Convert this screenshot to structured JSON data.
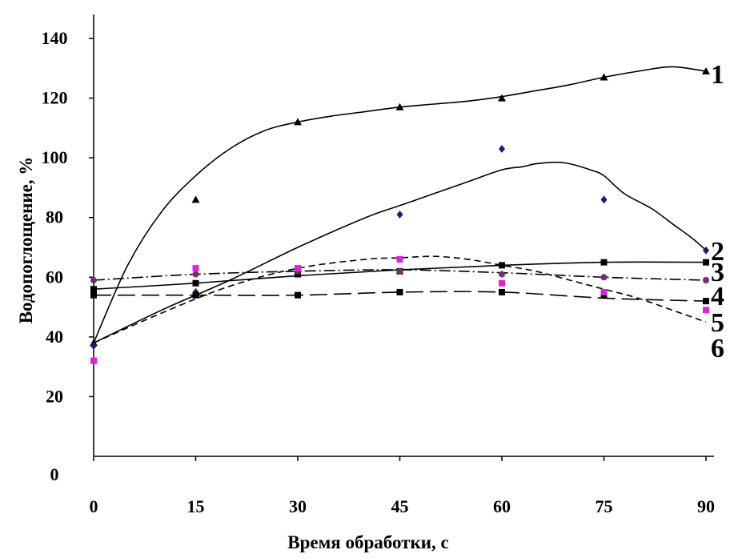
{
  "chart_data": {
    "type": "line",
    "title": "",
    "xlabel": "Время обработки, с",
    "ylabel": "Водопоглощение, %",
    "xlim": [
      0,
      90
    ],
    "ylim": [
      0,
      140
    ],
    "x_ticks": [
      "0",
      "15",
      "30",
      "45",
      "60",
      "75",
      "90"
    ],
    "y_ticks": [
      "0",
      "20",
      "40",
      "60",
      "80",
      "100",
      "120",
      "140"
    ],
    "x": [
      0,
      15,
      30,
      45,
      60,
      75,
      90
    ],
    "grid": false,
    "legend": "curve labels at right end",
    "series": [
      {
        "label": "1",
        "marker": "triangle",
        "dash": "solid",
        "color": "#000000",
        "marker_color": "#000000",
        "points": [
          38,
          86,
          112,
          117,
          120,
          127,
          129
        ],
        "fit": [
          [
            0,
            38
          ],
          [
            5,
            64
          ],
          [
            10,
            82
          ],
          [
            15,
            94
          ],
          [
            20,
            103
          ],
          [
            25,
            109
          ],
          [
            30,
            112
          ],
          [
            35,
            114
          ],
          [
            40,
            115.5
          ],
          [
            45,
            117
          ],
          [
            50,
            118
          ],
          [
            55,
            119
          ],
          [
            60,
            120.5
          ],
          [
            65,
            122.5
          ],
          [
            70,
            124.5
          ],
          [
            75,
            127
          ],
          [
            80,
            129
          ],
          [
            85,
            130.5
          ],
          [
            90,
            129
          ]
        ]
      },
      {
        "label": "2",
        "marker": "diamond",
        "dash": "solid",
        "color": "#000000",
        "marker_color": "#1a1a80",
        "points": [
          37,
          55,
          62,
          81,
          103,
          86,
          69
        ],
        "fit": [
          [
            0,
            38
          ],
          [
            10,
            49
          ],
          [
            20,
            59
          ],
          [
            30,
            70
          ],
          [
            40,
            80
          ],
          [
            45,
            84
          ],
          [
            50,
            88
          ],
          [
            55,
            92
          ],
          [
            60,
            96
          ],
          [
            63,
            97
          ],
          [
            65,
            98
          ],
          [
            68,
            98.5
          ],
          [
            70,
            98
          ],
          [
            73,
            96
          ],
          [
            75,
            94
          ],
          [
            78,
            88
          ],
          [
            82,
            83
          ],
          [
            85,
            78
          ],
          [
            88,
            73
          ],
          [
            90,
            69
          ]
        ]
      },
      {
        "label": "3",
        "marker": "square",
        "dash": "solid",
        "color": "#000000",
        "marker_color": "#000000",
        "points": [
          56,
          58,
          61,
          62,
          64,
          65,
          65
        ],
        "fit": [
          [
            0,
            56
          ],
          [
            15,
            58
          ],
          [
            30,
            60.5
          ],
          [
            45,
            62.5
          ],
          [
            60,
            64
          ],
          [
            75,
            65
          ],
          [
            90,
            65
          ]
        ]
      },
      {
        "label": "4",
        "marker": "circle",
        "dash": "dashdot",
        "color": "#000000",
        "marker_color": "#7a2a7a",
        "points": [
          59,
          61,
          62,
          62,
          61,
          60,
          59
        ],
        "fit": [
          [
            0,
            59
          ],
          [
            15,
            61
          ],
          [
            30,
            62
          ],
          [
            45,
            62.5
          ],
          [
            60,
            61.5
          ],
          [
            75,
            60
          ],
          [
            90,
            59
          ]
        ]
      },
      {
        "label": "5",
        "marker": "square",
        "dash": "longdash",
        "color": "#000000",
        "marker_color": "#000000",
        "points": [
          54,
          54,
          54,
          55,
          55,
          54,
          52
        ],
        "fit": [
          [
            0,
            54
          ],
          [
            15,
            54
          ],
          [
            30,
            54
          ],
          [
            45,
            55
          ],
          [
            60,
            55
          ],
          [
            75,
            53
          ],
          [
            90,
            52
          ]
        ]
      },
      {
        "label": "6",
        "marker": "square",
        "dash": "shortdash",
        "color": "#000000",
        "marker_color": "#e020e0",
        "points": [
          32,
          63,
          63,
          66,
          58,
          55,
          49
        ],
        "fit": [
          [
            0,
            38
          ],
          [
            10,
            48
          ],
          [
            20,
            57
          ],
          [
            30,
            63
          ],
          [
            40,
            66
          ],
          [
            45,
            66.5
          ],
          [
            50,
            67
          ],
          [
            55,
            66
          ],
          [
            60,
            64
          ],
          [
            65,
            62
          ],
          [
            70,
            59
          ],
          [
            75,
            56
          ],
          [
            80,
            53
          ],
          [
            85,
            49
          ],
          [
            90,
            45
          ]
        ]
      }
    ]
  }
}
